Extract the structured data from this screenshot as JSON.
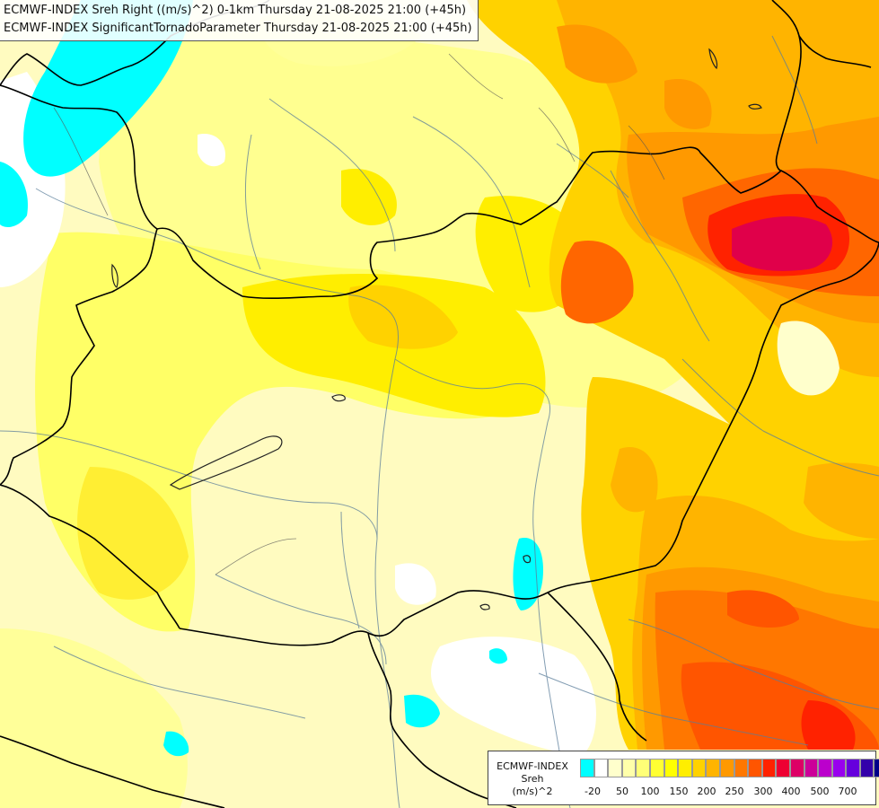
{
  "titles": {
    "line1": "ECMWF-INDEX Sreh Right ((m/s)^2) 0-1km Thursday 21-08-2025 21:00 (+45h)",
    "line2": "ECMWF-INDEX SignificantTornadoParameter Thursday 21-08-2025 21:00 (+45h)"
  },
  "legend": {
    "model": "ECMWF-INDEX",
    "parameter": "Sreh",
    "unit": "(m/s)^2",
    "colors": [
      "#00ffff",
      "#ffffff",
      "#ffffcc",
      "#ffffaa",
      "#ffff77",
      "#ffff33",
      "#ffff00",
      "#ffee00",
      "#ffd200",
      "#ffb400",
      "#ff9900",
      "#ff7700",
      "#ff5500",
      "#ff2200",
      "#ee0033",
      "#dd0066",
      "#cc0099",
      "#bb00cc",
      "#9900ee",
      "#6600dd",
      "#3300aa",
      "#000088"
    ],
    "ticks": [
      "-20",
      "50",
      "100",
      "150",
      "200",
      "250",
      "300",
      "400",
      "500",
      "700"
    ]
  }
}
